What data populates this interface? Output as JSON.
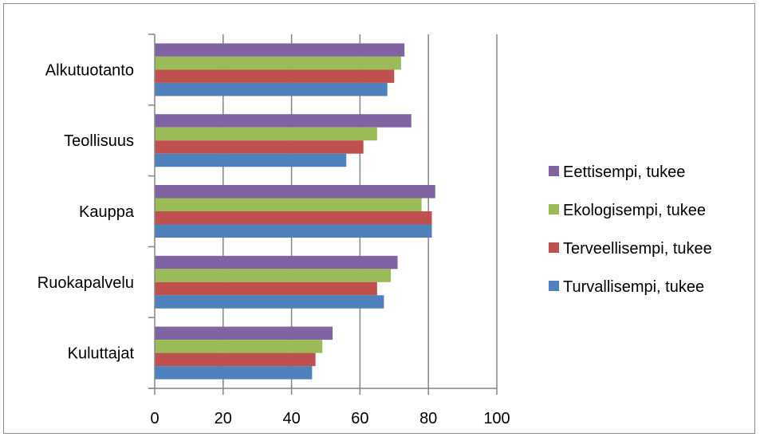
{
  "chart_data": {
    "type": "bar",
    "orientation": "horizontal",
    "categories": [
      "Alkutuotanto",
      "Teollisuus",
      "Kauppa",
      "Ruokapalvelu",
      "Kuluttajat"
    ],
    "series": [
      {
        "name": "Eettisempi, tukee",
        "color": "#8064A2",
        "values": [
          73,
          75,
          82,
          71,
          52
        ]
      },
      {
        "name": "Ekologisempi, tukee",
        "color": "#9BBB59",
        "values": [
          72,
          65,
          78,
          69,
          49
        ]
      },
      {
        "name": "Terveellisempi, tukee",
        "color": "#C0504D",
        "values": [
          70,
          61,
          81,
          65,
          47
        ]
      },
      {
        "name": "Turvallisempi, tukee",
        "color": "#4F81BD",
        "values": [
          68,
          56,
          81,
          67,
          46
        ]
      }
    ],
    "xlim": [
      0,
      100
    ],
    "xticks": [
      "0",
      "20",
      "40",
      "60",
      "80",
      "100"
    ],
    "grid": "vertical",
    "legend_position": "right",
    "title": "",
    "xlabel": "",
    "ylabel": ""
  }
}
